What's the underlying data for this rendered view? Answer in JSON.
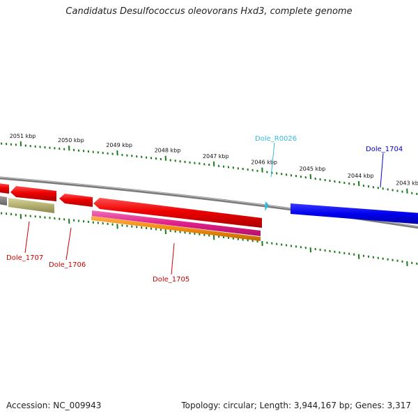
{
  "title": "Candidatus Desulfococcus oleovorans Hxd3, complete genome",
  "footer": {
    "accession": "Accession: NC_009943",
    "summary": "Topology: circular; Length: 3,944,167 bp; Genes: 3,317"
  },
  "scale_labels": [
    "2051 kbp",
    "2050 kbp",
    "2049 kbp",
    "2048 kbp",
    "2047 kbp",
    "2046 kbp",
    "2045 kbp",
    "2044 kbp",
    "2043 kbp"
  ],
  "features": [
    {
      "label": "Dole_1707",
      "color": "#cc0000"
    },
    {
      "label": "Dole_1706",
      "color": "#cc0000"
    },
    {
      "label": "Dole_1705",
      "color": "#cc0000"
    },
    {
      "label": "Dole_R0026",
      "color": "#33bbdd"
    },
    {
      "label": "Dole_1704",
      "color": "#0000cc"
    }
  ],
  "colors": {
    "backbone": "#808080",
    "scale_ticks": "#1a7a1a",
    "cds_forward": "#0000ee",
    "cds_reverse": "#ee0000",
    "gene_pink": "#e0208a",
    "gene_orange": "#f08c10",
    "gene_olive": "#b4b070",
    "rna": "#33bbdd"
  }
}
